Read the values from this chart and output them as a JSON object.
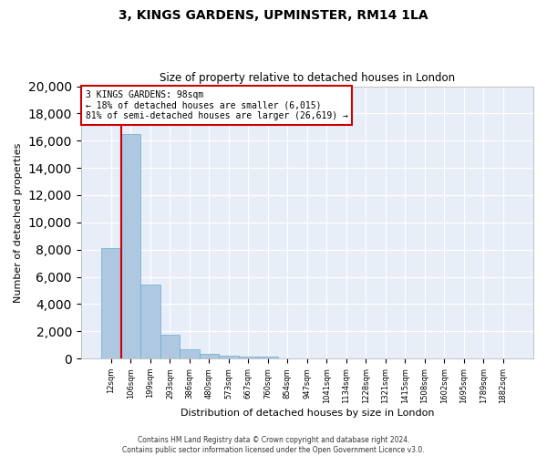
{
  "title": "3, KINGS GARDENS, UPMINSTER, RM14 1LA",
  "subtitle": "Size of property relative to detached houses in London",
  "xlabel": "Distribution of detached houses by size in London",
  "ylabel": "Number of detached properties",
  "bar_color": "#adc8e0",
  "bar_edge_color": "#6aaad4",
  "vline_color": "#cc0000",
  "vline_x_index": 1,
  "annotation_title": "3 KINGS GARDENS: 98sqm",
  "annotation_line1": "← 18% of detached houses are smaller (6,015)",
  "annotation_line2": "81% of semi-detached houses are larger (26,619) →",
  "annotation_box_color": "#ffffff",
  "annotation_box_edge": "#cc0000",
  "categories": [
    "12sqm",
    "106sqm",
    "199sqm",
    "293sqm",
    "386sqm",
    "480sqm",
    "573sqm",
    "667sqm",
    "760sqm",
    "854sqm",
    "947sqm",
    "1041sqm",
    "1134sqm",
    "1228sqm",
    "1321sqm",
    "1415sqm",
    "1508sqm",
    "1602sqm",
    "1695sqm",
    "1789sqm",
    "1882sqm"
  ],
  "values": [
    8100,
    16500,
    5400,
    1750,
    700,
    320,
    210,
    160,
    120,
    0,
    0,
    0,
    0,
    0,
    0,
    0,
    0,
    0,
    0,
    0,
    0
  ],
  "ylim": [
    0,
    20000
  ],
  "yticks": [
    0,
    2000,
    4000,
    6000,
    8000,
    10000,
    12000,
    14000,
    16000,
    18000,
    20000
  ],
  "footer1": "Contains HM Land Registry data © Crown copyright and database right 2024.",
  "footer2": "Contains public sector information licensed under the Open Government Licence v3.0.",
  "background_color": "#e8eef8",
  "grid_color": "#ffffff",
  "fig_background": "#ffffff"
}
